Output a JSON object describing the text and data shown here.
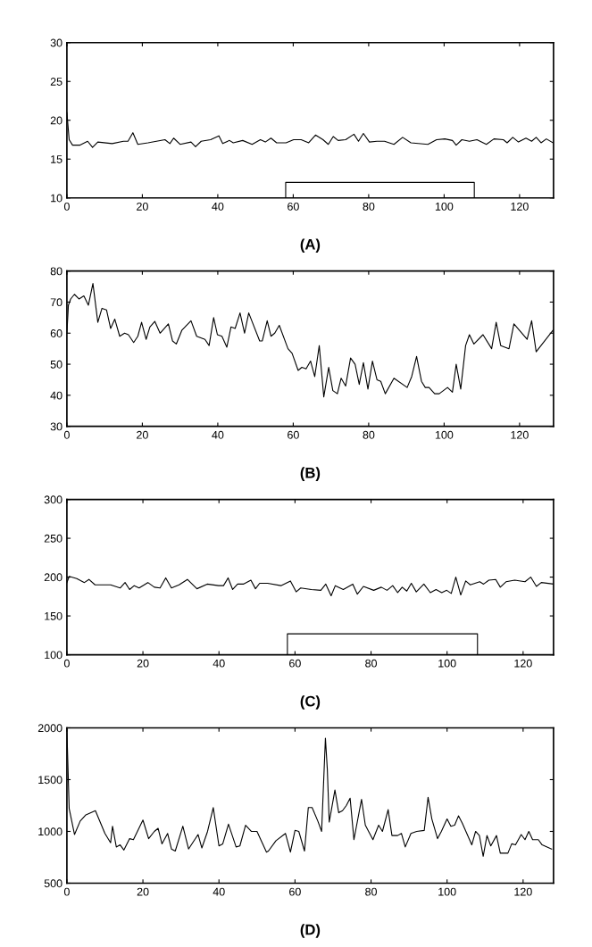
{
  "chart_data": [
    {
      "type": "line",
      "title": "(A)",
      "xlim": [
        0,
        129
      ],
      "ylim": [
        10,
        30
      ],
      "xticks": [
        0,
        20,
        40,
        60,
        80,
        100,
        120
      ],
      "yticks": [
        10,
        15,
        20,
        25,
        30
      ],
      "grid": false,
      "series": [
        {
          "color": "#000000",
          "x": [
            0,
            0.6,
            1.5,
            3.5,
            5.5,
            6.8,
            8.2,
            12,
            15,
            16.2,
            17.5,
            18.8,
            21.5,
            26,
            27.3,
            28.3,
            30,
            32.9,
            34.1,
            35.6,
            38.1,
            40.3,
            41.3,
            43.1,
            44.1,
            46.6,
            49.1,
            51.3,
            52.6,
            54.1,
            55.6,
            58.1,
            60.1,
            62.1,
            64.1,
            65.9,
            67.9,
            69.3,
            70.6,
            71.9,
            73.9,
            76.1,
            77.3,
            78.6,
            80.2,
            82.2,
            84.2,
            86.7,
            89,
            91.2,
            95.7,
            98,
            100.2,
            102.2,
            103.2,
            104.7,
            106.7,
            108.7,
            111.2,
            113.2,
            115.7,
            116.7,
            118.2,
            119.7,
            121.7,
            123.2,
            124.4,
            125.7,
            127.1,
            128.9
          ],
          "values": [
            21,
            17.5,
            16.8,
            16.8,
            17.3,
            16.5,
            17.2,
            17.0,
            17.3,
            17.3,
            18.4,
            16.9,
            17.1,
            17.5,
            17.0,
            17.7,
            16.9,
            17.2,
            16.6,
            17.3,
            17.5,
            18.0,
            17.0,
            17.4,
            17.1,
            17.4,
            16.9,
            17.5,
            17.2,
            17.7,
            17.1,
            17.1,
            17.5,
            17.5,
            17.1,
            18.1,
            17.5,
            16.9,
            17.9,
            17.4,
            17.5,
            18.2,
            17.3,
            18.3,
            17.2,
            17.3,
            17.3,
            16.9,
            17.8,
            17.1,
            16.9,
            17.5,
            17.6,
            17.4,
            16.8,
            17.5,
            17.3,
            17.5,
            16.9,
            17.6,
            17.5,
            17.1,
            17.8,
            17.2,
            17.7,
            17.3,
            17.8,
            17.1,
            17.6,
            17.1
          ]
        },
        {
          "color": "#000000",
          "x": [
            58,
            58,
            108,
            108
          ],
          "values": [
            10,
            12,
            12,
            10
          ]
        }
      ]
    },
    {
      "type": "line",
      "title": "(B)",
      "xlim": [
        0,
        129
      ],
      "ylim": [
        30,
        80
      ],
      "xticks": [
        0,
        20,
        40,
        60,
        80,
        100,
        120
      ],
      "yticks": [
        30,
        40,
        50,
        60,
        70,
        80
      ],
      "grid": false,
      "series": [
        {
          "color": "#000000",
          "x": [
            0,
            0.4,
            1,
            2,
            3.2,
            4.5,
            5.7,
            6.9,
            8.2,
            9.3,
            10.5,
            11.6,
            12.7,
            14,
            15.3,
            16.3,
            17.7,
            18.8,
            19.8,
            21,
            22,
            23.3,
            24.7,
            26.9,
            28,
            29,
            30.5,
            32.9,
            34.4,
            36.6,
            37.7,
            38.9,
            39.9,
            41.1,
            42.4,
            43.5,
            44.6,
            45.9,
            47.1,
            48.2,
            51.1,
            51.8,
            53.1,
            54.1,
            55.1,
            56.3,
            58.6,
            59.7,
            61.3,
            62.3,
            63.4,
            64.6,
            65.7,
            66.9,
            68.1,
            69.4,
            70.5,
            71.7,
            72.7,
            73.9,
            75.2,
            76.4,
            77.5,
            78.6,
            79.8,
            81,
            82.2,
            83.2,
            84.4,
            86.7,
            90.2,
            91.4,
            92.7,
            94,
            95,
            96,
            97.5,
            98.7,
            100.9,
            102.2,
            103.2,
            104.4,
            105.7,
            106.7,
            107.9,
            110.3,
            112.6,
            113.8,
            115,
            117.2,
            118.5,
            122,
            123.2,
            124.4,
            128.9
          ],
          "values": [
            60,
            69,
            71,
            72.5,
            71,
            72,
            69,
            76,
            63.5,
            68,
            67.5,
            61.5,
            64.5,
            59,
            60,
            59.5,
            57,
            59,
            63.5,
            58,
            62,
            63.8,
            60,
            63,
            57.5,
            56.5,
            61,
            64,
            59,
            58,
            56,
            65,
            59.5,
            59,
            55.5,
            62,
            61.5,
            66.5,
            60,
            66.5,
            57.5,
            57.5,
            64,
            59,
            60,
            62.5,
            55,
            53.5,
            48,
            49,
            48.5,
            51,
            46,
            56,
            39.5,
            49,
            41.5,
            40.5,
            45.5,
            43,
            52,
            50,
            43.5,
            50.5,
            42,
            51,
            45,
            44.5,
            40.5,
            45.5,
            42.5,
            46,
            52.5,
            44.5,
            42.5,
            42.5,
            40.5,
            40.5,
            42.5,
            41,
            50,
            42,
            56,
            59.5,
            56.5,
            59.5,
            55,
            63.5,
            56,
            55,
            63,
            58,
            64,
            54,
            61
          ]
        }
      ]
    },
    {
      "type": "line",
      "title": "(C)",
      "xlim": [
        0,
        128
      ],
      "ylim": [
        100,
        300
      ],
      "xticks": [
        0,
        20,
        40,
        60,
        80,
        100,
        120
      ],
      "yticks": [
        100,
        150,
        200,
        250,
        300
      ],
      "grid": false,
      "series": [
        {
          "color": "#000000",
          "x": [
            0,
            0.6,
            2.6,
            4.6,
            5.8,
            7.4,
            11.5,
            14,
            15.3,
            16.5,
            17.7,
            19,
            21.3,
            23,
            24.5,
            26,
            27.5,
            29.5,
            31.7,
            34.2,
            36.9,
            39.9,
            41.2,
            42.4,
            43.6,
            44.9,
            46.4,
            48.4,
            49.6,
            50.7,
            52.8,
            56.3,
            58.8,
            60.3,
            61.5,
            64.3,
            66.8,
            68.1,
            69.5,
            70.6,
            72.7,
            75.2,
            76.4,
            78,
            80.7,
            82.7,
            84.2,
            85.7,
            87,
            88.2,
            89.4,
            90.6,
            91.9,
            93.9,
            95.6,
            97.1,
            98.6,
            99.9,
            101.1,
            102.3,
            103.6,
            104.9,
            106.1,
            108.6,
            109.6,
            111,
            112.8,
            114,
            115.5,
            117.8,
            120.5,
            122,
            123.5,
            124.8,
            128
          ],
          "values": [
            193,
            201,
            198,
            193,
            197,
            190,
            190,
            186,
            193,
            184,
            189,
            186,
            193,
            187,
            186,
            199,
            186,
            190,
            197,
            185,
            191,
            189,
            189,
            199,
            184,
            191,
            191,
            196,
            185,
            192,
            192,
            189,
            195,
            181,
            186,
            184,
            183,
            191,
            176,
            189,
            184,
            191,
            178,
            188,
            183,
            187,
            183,
            189,
            180,
            187,
            182,
            192,
            181,
            191,
            180,
            184,
            180,
            183,
            179,
            200,
            177,
            195,
            190,
            194,
            191,
            196,
            197,
            187,
            194,
            196,
            194,
            200,
            188,
            193,
            191
          ]
        },
        {
          "color": "#000000",
          "x": [
            58,
            58,
            108,
            108
          ],
          "values": [
            100,
            127,
            127,
            100
          ]
        }
      ]
    },
    {
      "type": "line",
      "title": "(D)",
      "xlim": [
        0,
        128
      ],
      "ylim": [
        500,
        2000
      ],
      "xticks": [
        0,
        20,
        40,
        60,
        80,
        100,
        120
      ],
      "yticks": [
        500,
        1000,
        1500,
        2000
      ],
      "grid": false,
      "series": [
        {
          "color": "#000000",
          "x": [
            0,
            0.6,
            2,
            3.5,
            5,
            7.5,
            10,
            11,
            11.5,
            12,
            13,
            14,
            15,
            16.5,
            17.5,
            20,
            21.5,
            23,
            24,
            25,
            26.5,
            27.5,
            28.5,
            30.5,
            32,
            34.5,
            35.5,
            37,
            38.5,
            40,
            41,
            42.5,
            44.5,
            45.5,
            47,
            48.5,
            50,
            52.5,
            53,
            55,
            57.5,
            58.8,
            60,
            61,
            62.5,
            63.5,
            64.5,
            66,
            67,
            68,
            68.5,
            69,
            70.5,
            71.5,
            72.5,
            73.5,
            74.5,
            75.5,
            77.5,
            78.5,
            80.5,
            82,
            83,
            84.5,
            85.5,
            87,
            88,
            89,
            90.5,
            92,
            94,
            95,
            96,
            97.5,
            98.5,
            100,
            101,
            102,
            103,
            104,
            106.5,
            107.5,
            108.5,
            109.5,
            110.5,
            111.5,
            113,
            114,
            116,
            117,
            118,
            119.5,
            120.5,
            121.5,
            122.5,
            124,
            125,
            127.5
          ],
          "values": [
            1980,
            1220,
            970,
            1100,
            1160,
            1200,
            980,
            920,
            890,
            1050,
            850,
            870,
            820,
            930,
            920,
            1110,
            930,
            1000,
            1030,
            880,
            980,
            830,
            810,
            1050,
            830,
            970,
            840,
            1000,
            1230,
            860,
            880,
            1070,
            850,
            860,
            1060,
            1000,
            1000,
            800,
            810,
            910,
            980,
            800,
            1010,
            1000,
            810,
            1230,
            1230,
            1100,
            1000,
            1900,
            1600,
            1090,
            1400,
            1180,
            1200,
            1250,
            1320,
            920,
            1310,
            1060,
            920,
            1060,
            1000,
            1210,
            960,
            960,
            980,
            850,
            980,
            1000,
            1010,
            1330,
            1120,
            930,
            1000,
            1120,
            1050,
            1060,
            1150,
            1080,
            870,
            1000,
            960,
            760,
            960,
            860,
            960,
            790,
            790,
            880,
            870,
            970,
            920,
            1000,
            920,
            920,
            870,
            830
          ]
        }
      ]
    }
  ]
}
